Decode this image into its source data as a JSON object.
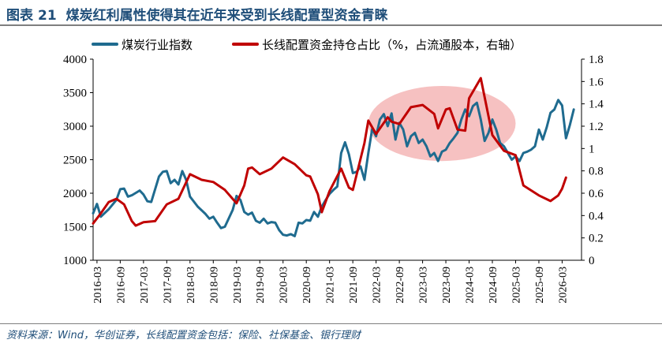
{
  "header": {
    "label": "图表",
    "number": "21",
    "title": "煤炭红利属性使得其在近年来受到长线配置型资金青睐"
  },
  "source": "资料来源：Wind，华创证券，长线配置资金包括：保险、社保基金、银行理财",
  "colors": {
    "coal_index": "#1f6b8f",
    "long_term_share": "#c00000",
    "highlight": "#f4b6b6",
    "title": "#1f4e79"
  },
  "chart_data": {
    "type": "line",
    "x_tick_labels": [
      "2016-03",
      "2016-09",
      "2017-03",
      "2017-09",
      "2018-03",
      "2018-09",
      "2019-03",
      "2019-09",
      "2020-03",
      "2020-09",
      "2021-03",
      "2021-09",
      "2022-03",
      "2022-09",
      "2023-03",
      "2023-09",
      "2024-03",
      "2024-09",
      "2025-03",
      "2025-09",
      "2026-03"
    ],
    "x_range": [
      "2016-02",
      "2026-08"
    ],
    "y_left": {
      "min": 1000,
      "max": 4000,
      "ticks": [
        1000,
        1500,
        2000,
        2500,
        3000,
        3500,
        4000
      ]
    },
    "y_right": {
      "min": 0,
      "max": 1.8,
      "ticks": [
        "0",
        "0.2",
        "0.4",
        "0.6",
        "0.8",
        "1",
        "1.2",
        "1.4",
        "1.6",
        "1.8"
      ]
    },
    "grid": false,
    "legend_position": "top",
    "annotations": [
      {
        "type": "ellipse",
        "label": "",
        "x_range": [
          "2022-01",
          "2025-03"
        ],
        "y_left_range": [
          2480,
          3600
        ]
      }
    ],
    "series": [
      {
        "name": "煤炭行业指数",
        "axis": "left",
        "points": [
          [
            "2016-02",
            1700
          ],
          [
            "2016-03",
            1840
          ],
          [
            "2016-04",
            1650
          ],
          [
            "2016-06",
            1760
          ],
          [
            "2016-08",
            1900
          ],
          [
            "2016-09",
            2060
          ],
          [
            "2016-10",
            2070
          ],
          [
            "2016-11",
            1950
          ],
          [
            "2016-12",
            1970
          ],
          [
            "2017-02",
            2040
          ],
          [
            "2017-03",
            1980
          ],
          [
            "2017-04",
            1880
          ],
          [
            "2017-05",
            1870
          ],
          [
            "2017-07",
            2250
          ],
          [
            "2017-08",
            2320
          ],
          [
            "2017-09",
            2330
          ],
          [
            "2017-10",
            2150
          ],
          [
            "2017-11",
            2200
          ],
          [
            "2017-12",
            2130
          ],
          [
            "2018-01",
            2330
          ],
          [
            "2018-02",
            2200
          ],
          [
            "2018-03",
            1950
          ],
          [
            "2018-05",
            1800
          ],
          [
            "2018-07",
            1690
          ],
          [
            "2018-08",
            1620
          ],
          [
            "2018-09",
            1650
          ],
          [
            "2018-10",
            1560
          ],
          [
            "2018-11",
            1480
          ],
          [
            "2018-12",
            1500
          ],
          [
            "2019-02",
            1750
          ],
          [
            "2019-03",
            1960
          ],
          [
            "2019-04",
            1900
          ],
          [
            "2019-05",
            1720
          ],
          [
            "2019-06",
            1680
          ],
          [
            "2019-07",
            1710
          ],
          [
            "2019-08",
            1590
          ],
          [
            "2019-09",
            1560
          ],
          [
            "2019-10",
            1620
          ],
          [
            "2019-11",
            1550
          ],
          [
            "2019-12",
            1570
          ],
          [
            "2020-01",
            1560
          ],
          [
            "2020-02",
            1450
          ],
          [
            "2020-03",
            1380
          ],
          [
            "2020-04",
            1370
          ],
          [
            "2020-05",
            1390
          ],
          [
            "2020-06",
            1360
          ],
          [
            "2020-07",
            1560
          ],
          [
            "2020-08",
            1550
          ],
          [
            "2020-09",
            1600
          ],
          [
            "2020-10",
            1590
          ],
          [
            "2020-11",
            1720
          ],
          [
            "2020-12",
            1650
          ],
          [
            "2021-01",
            1800
          ],
          [
            "2021-02",
            1900
          ],
          [
            "2021-03",
            1990
          ],
          [
            "2021-04",
            2050
          ],
          [
            "2021-05",
            2100
          ],
          [
            "2021-06",
            2600
          ],
          [
            "2021-07",
            2760
          ],
          [
            "2021-08",
            2580
          ],
          [
            "2021-09",
            2300
          ],
          [
            "2021-10",
            2320
          ],
          [
            "2021-11",
            2400
          ],
          [
            "2021-12",
            2200
          ],
          [
            "2022-01",
            2600
          ],
          [
            "2022-02",
            2960
          ],
          [
            "2022-03",
            2850
          ],
          [
            "2022-04",
            3100
          ],
          [
            "2022-05",
            3180
          ],
          [
            "2022-06",
            3000
          ],
          [
            "2022-07",
            3190
          ],
          [
            "2022-08",
            2800
          ],
          [
            "2022-09",
            3050
          ],
          [
            "2022-10",
            2950
          ],
          [
            "2022-11",
            2700
          ],
          [
            "2022-12",
            2850
          ],
          [
            "2023-01",
            2900
          ],
          [
            "2023-02",
            2750
          ],
          [
            "2023-03",
            2800
          ],
          [
            "2023-04",
            2700
          ],
          [
            "2023-05",
            2550
          ],
          [
            "2023-06",
            2600
          ],
          [
            "2023-07",
            2480
          ],
          [
            "2023-08",
            2620
          ],
          [
            "2023-09",
            2650
          ],
          [
            "2023-10",
            2750
          ],
          [
            "2023-11",
            2820
          ],
          [
            "2023-12",
            2900
          ],
          [
            "2024-01",
            3100
          ],
          [
            "2024-02",
            3250
          ],
          [
            "2024-03",
            3150
          ],
          [
            "2024-04",
            3300
          ],
          [
            "2024-05",
            3350
          ],
          [
            "2024-06",
            3100
          ],
          [
            "2024-07",
            2780
          ],
          [
            "2024-08",
            2900
          ],
          [
            "2024-09",
            3100
          ],
          [
            "2024-10",
            2950
          ],
          [
            "2024-11",
            2750
          ],
          [
            "2024-12",
            2700
          ],
          [
            "2025-01",
            2600
          ],
          [
            "2025-02",
            2500
          ],
          [
            "2025-03",
            2550
          ],
          [
            "2025-04",
            2480
          ],
          [
            "2025-05",
            2600
          ],
          [
            "2025-06",
            2620
          ],
          [
            "2025-07",
            2650
          ],
          [
            "2025-08",
            2700
          ],
          [
            "2025-09",
            2950
          ],
          [
            "2025-10",
            2800
          ],
          [
            "2025-11",
            2980
          ],
          [
            "2025-12",
            3200
          ],
          [
            "2026-01",
            3250
          ],
          [
            "2026-02",
            3390
          ],
          [
            "2026-03",
            3310
          ],
          [
            "2026-04",
            2820
          ],
          [
            "2026-05",
            3020
          ],
          [
            "2026-06",
            3250
          ]
        ]
      },
      {
        "name": "长线配置资金持仓占比（%，占流通股本，右轴）",
        "axis": "right",
        "points": [
          [
            "2016-02",
            0.33
          ],
          [
            "2016-04",
            0.42
          ],
          [
            "2016-06",
            0.52
          ],
          [
            "2016-08",
            0.55
          ],
          [
            "2016-10",
            0.5
          ],
          [
            "2016-12",
            0.35
          ],
          [
            "2017-01",
            0.31
          ],
          [
            "2017-03",
            0.34
          ],
          [
            "2017-06",
            0.35
          ],
          [
            "2017-09",
            0.5
          ],
          [
            "2017-12",
            0.55
          ],
          [
            "2018-03",
            0.77
          ],
          [
            "2018-06",
            0.72
          ],
          [
            "2018-09",
            0.7
          ],
          [
            "2018-12",
            0.63
          ],
          [
            "2019-03",
            0.51
          ],
          [
            "2019-05",
            0.67
          ],
          [
            "2019-06",
            0.82
          ],
          [
            "2019-07",
            0.83
          ],
          [
            "2019-09",
            0.77
          ],
          [
            "2019-12",
            0.82
          ],
          [
            "2020-03",
            0.92
          ],
          [
            "2020-06",
            0.86
          ],
          [
            "2020-09",
            0.76
          ],
          [
            "2020-10",
            0.75
          ],
          [
            "2020-12",
            0.59
          ],
          [
            "2021-01",
            0.43
          ],
          [
            "2021-03",
            0.62
          ],
          [
            "2021-06",
            0.82
          ],
          [
            "2021-08",
            0.65
          ],
          [
            "2021-09",
            0.63
          ],
          [
            "2021-12",
            1.05
          ],
          [
            "2022-01",
            1.25
          ],
          [
            "2022-03",
            1.13
          ],
          [
            "2022-06",
            1.28
          ],
          [
            "2022-07",
            1.24
          ],
          [
            "2022-09",
            1.22
          ],
          [
            "2022-12",
            1.37
          ],
          [
            "2023-03",
            1.39
          ],
          [
            "2023-06",
            1.31
          ],
          [
            "2023-07",
            1.18
          ],
          [
            "2023-09",
            1.35
          ],
          [
            "2023-10",
            1.36
          ],
          [
            "2023-12",
            1.17
          ],
          [
            "2024-02",
            1.16
          ],
          [
            "2024-03",
            1.45
          ],
          [
            "2024-06",
            1.63
          ],
          [
            "2024-09",
            1.12
          ],
          [
            "2024-12",
            0.98
          ],
          [
            "2025-03",
            0.94
          ],
          [
            "2025-05",
            0.67
          ],
          [
            "2025-09",
            0.58
          ],
          [
            "2025-12",
            0.53
          ],
          [
            "2026-02",
            0.58
          ],
          [
            "2026-03",
            0.64
          ],
          [
            "2026-04",
            0.74
          ]
        ]
      }
    ]
  }
}
